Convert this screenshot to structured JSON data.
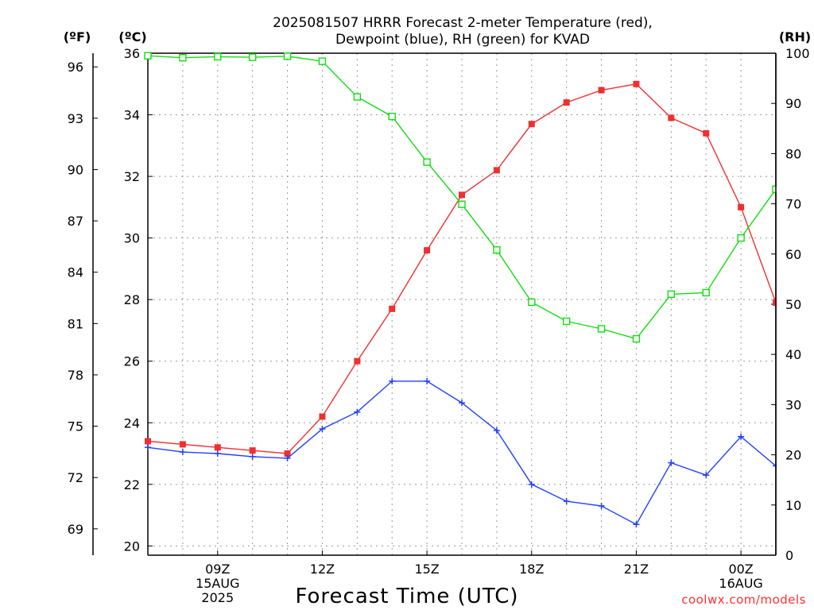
{
  "chart_data": {
    "type": "line",
    "title_line1": "2025081507 HRRR Forecast 2-meter Temperature (red),",
    "title_line2": "Dewpoint (blue), RH (green) for KVAD",
    "xlabel": "Forecast Time (UTC)",
    "unit_labels": {
      "fahrenheit": "(ºF)",
      "celsius": "(ºC)",
      "rh": "(RH)"
    },
    "credit": "coolwx.com/models",
    "x_hours": [
      7,
      8,
      9,
      10,
      11,
      12,
      13,
      14,
      15,
      16,
      17,
      18,
      19,
      20,
      21,
      22,
      23,
      24,
      25
    ],
    "xlim": [
      7,
      25
    ],
    "x_ticks": [
      {
        "hour": 9,
        "lines": [
          "09Z",
          "15AUG",
          "2025"
        ]
      },
      {
        "hour": 12,
        "lines": [
          "12Z"
        ]
      },
      {
        "hour": 15,
        "lines": [
          "15Z"
        ]
      },
      {
        "hour": 18,
        "lines": [
          "18Z"
        ]
      },
      {
        "hour": 21,
        "lines": [
          "21Z"
        ]
      },
      {
        "hour": 24,
        "lines": [
          "00Z",
          "16AUG"
        ]
      }
    ],
    "y_left_c": {
      "lim": [
        19.7,
        36
      ],
      "ticks": [
        20,
        22,
        24,
        26,
        28,
        30,
        32,
        34,
        36
      ]
    },
    "y_left_f": {
      "ticks": [
        69,
        72,
        75,
        78,
        81,
        84,
        87,
        90,
        93,
        96
      ]
    },
    "y_right_rh": {
      "lim": [
        0,
        100
      ],
      "ticks": [
        0,
        10,
        20,
        30,
        40,
        50,
        60,
        70,
        80,
        90,
        100
      ]
    },
    "grid": true,
    "series": [
      {
        "name": "Temperature",
        "axis": "c",
        "color": "#ef3030",
        "marker": "filled-square",
        "values": [
          23.4,
          23.3,
          23.2,
          23.1,
          23.0,
          24.2,
          26.0,
          27.7,
          29.6,
          31.4,
          32.2,
          33.7,
          34.4,
          34.8,
          35.0,
          33.9,
          33.4,
          31.0,
          27.9
        ]
      },
      {
        "name": "Dewpoint",
        "axis": "c",
        "color": "#2040ff",
        "marker": "plus",
        "values": [
          23.2,
          23.05,
          23.0,
          22.9,
          22.85,
          23.8,
          24.35,
          25.35,
          25.35,
          24.65,
          23.75,
          22.0,
          21.45,
          21.3,
          20.7,
          22.7,
          22.3,
          23.55,
          22.6
        ]
      },
      {
        "name": "RH",
        "axis": "rh",
        "color": "#10dd10",
        "marker": "open-square",
        "values": [
          99.5,
          99.1,
          99.3,
          99.2,
          99.4,
          98.4,
          91.3,
          87.4,
          78.3,
          69.9,
          60.8,
          50.4,
          46.6,
          45.1,
          43.1,
          52.0,
          52.3,
          63.2,
          72.9
        ]
      }
    ]
  }
}
